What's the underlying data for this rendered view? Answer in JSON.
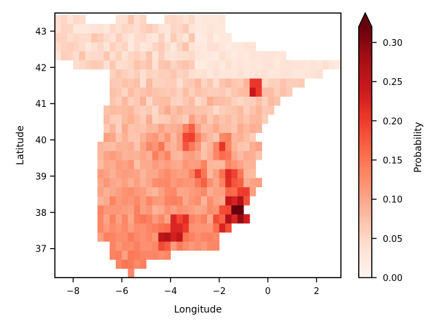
{
  "chart_data": {
    "type": "heatmap",
    "title": "",
    "xlabel": "Longitude",
    "ylabel": "Latitude",
    "xlim": [
      -8.75,
      3.0
    ],
    "ylim": [
      36.2,
      43.5
    ],
    "x_ticks": [
      -8,
      -6,
      -4,
      -2,
      0,
      2
    ],
    "x_tick_labels": [
      "−8",
      "−6",
      "−4",
      "−2",
      "0",
      "2"
    ],
    "y_ticks": [
      37,
      38,
      39,
      40,
      41,
      42,
      43
    ],
    "y_tick_labels": [
      "37",
      "38",
      "39",
      "40",
      "41",
      "42",
      "43"
    ],
    "grid": false,
    "cell_size_deg": 0.25,
    "colorbar": {
      "label": "Probability",
      "min": 0.0,
      "max": 0.32,
      "extend": "max",
      "colormap": "Reds",
      "ticks": [
        0.0,
        0.05,
        0.1,
        0.15,
        0.2,
        0.25,
        0.3
      ],
      "tick_labels": [
        "0.00",
        "0.05",
        "0.10",
        "0.15",
        "0.20",
        "0.25",
        "0.30"
      ]
    },
    "colormap_stops": [
      "#fff5f0",
      "#fee0d2",
      "#fcbba1",
      "#fc9272",
      "#fb6a4a",
      "#ef3b2c",
      "#cb181d",
      "#a50f15",
      "#67000d"
    ],
    "colormap_over": "#67000d",
    "region_rows": [
      {
        "lat": 43.35,
        "lon": [
          [
            -8.7,
            -7.6
          ],
          [
            -6.3,
            -5.0
          ],
          [
            -4.3,
            -1.7
          ]
        ]
      },
      {
        "lat": 43.1,
        "lon": [
          [
            -8.7,
            -1.7
          ]
        ]
      },
      {
        "lat": 42.85,
        "lon": [
          [
            -8.7,
            -1.4
          ]
        ]
      },
      {
        "lat": 42.6,
        "lon": [
          [
            -8.7,
            -0.6
          ]
        ]
      },
      {
        "lat": 42.35,
        "lon": [
          [
            -8.7,
            0.8
          ]
        ]
      },
      {
        "lat": 42.1,
        "lon": [
          [
            -8.0,
            3.0
          ]
        ]
      },
      {
        "lat": 41.85,
        "lon": [
          [
            -6.5,
            2.3
          ]
        ]
      },
      {
        "lat": 41.6,
        "lon": [
          [
            -6.5,
            1.5
          ]
        ]
      },
      {
        "lat": 41.35,
        "lon": [
          [
            -6.5,
            1.0
          ]
        ]
      },
      {
        "lat": 41.1,
        "lon": [
          [
            -6.5,
            0.5
          ]
        ]
      },
      {
        "lat": 40.85,
        "lon": [
          [
            -6.8,
            0.2
          ]
        ]
      },
      {
        "lat": 40.6,
        "lon": [
          [
            -6.8,
            0.0
          ]
        ]
      },
      {
        "lat": 40.35,
        "lon": [
          [
            -6.8,
            -0.3
          ]
        ]
      },
      {
        "lat": 40.1,
        "lon": [
          [
            -6.8,
            -0.5
          ]
        ]
      },
      {
        "lat": 39.85,
        "lon": [
          [
            -7.0,
            -0.3
          ]
        ]
      },
      {
        "lat": 39.6,
        "lon": [
          [
            -7.0,
            -0.3
          ]
        ]
      },
      {
        "lat": 39.35,
        "lon": [
          [
            -7.0,
            -0.4
          ]
        ]
      },
      {
        "lat": 39.1,
        "lon": [
          [
            -7.0,
            -0.5
          ]
        ]
      },
      {
        "lat": 38.85,
        "lon": [
          [
            -7.0,
            -0.3
          ]
        ]
      },
      {
        "lat": 38.6,
        "lon": [
          [
            -7.0,
            -0.5
          ]
        ]
      },
      {
        "lat": 38.35,
        "lon": [
          [
            -7.0,
            -0.8
          ]
        ]
      },
      {
        "lat": 38.1,
        "lon": [
          [
            -7.0,
            -0.9
          ]
        ]
      },
      {
        "lat": 37.85,
        "lon": [
          [
            -7.0,
            -0.8
          ]
        ]
      },
      {
        "lat": 37.6,
        "lon": [
          [
            -7.0,
            -1.5
          ]
        ]
      },
      {
        "lat": 37.35,
        "lon": [
          [
            -7.0,
            -2.0
          ]
        ]
      },
      {
        "lat": 37.1,
        "lon": [
          [
            -6.5,
            -2.0
          ]
        ]
      },
      {
        "lat": 36.85,
        "lon": [
          [
            -6.5,
            -4.0
          ]
        ]
      },
      {
        "lat": 36.6,
        "lon": [
          [
            -6.2,
            -5.0
          ]
        ]
      },
      {
        "lat": 36.35,
        "lon": [
          [
            -5.8,
            -5.4
          ]
        ]
      }
    ],
    "hotspots": [
      {
        "lon": -1.2,
        "lat": 38.0,
        "radius": 0.7,
        "value": 0.32
      },
      {
        "lon": -1.8,
        "lat": 37.6,
        "radius": 0.5,
        "value": 0.26
      },
      {
        "lon": -3.7,
        "lat": 37.6,
        "radius": 0.45,
        "value": 0.3
      },
      {
        "lon": -4.2,
        "lat": 37.3,
        "radius": 0.35,
        "value": 0.28
      },
      {
        "lon": -1.5,
        "lat": 38.9,
        "radius": 0.45,
        "value": 0.26
      },
      {
        "lon": -0.5,
        "lat": 41.35,
        "radius": 0.3,
        "value": 0.3
      },
      {
        "lon": -2.8,
        "lat": 39.0,
        "radius": 0.4,
        "value": 0.2
      },
      {
        "lon": -3.2,
        "lat": 40.0,
        "radius": 0.6,
        "value": 0.19
      },
      {
        "lon": -1.8,
        "lat": 39.8,
        "radius": 0.4,
        "value": 0.2
      },
      {
        "lon": -4.0,
        "lat": 38.6,
        "radius": 0.6,
        "value": 0.17
      },
      {
        "lon": -5.3,
        "lat": 37.9,
        "radius": 0.5,
        "value": 0.16
      },
      {
        "lon": -4.5,
        "lat": 39.7,
        "radius": 0.7,
        "value": 0.15
      }
    ]
  }
}
